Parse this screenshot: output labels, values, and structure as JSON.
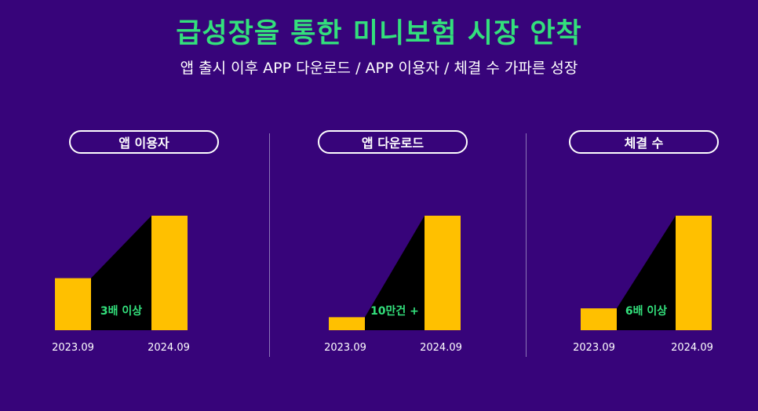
{
  "header": {
    "title": "급성장을 통한 미니보험 시장 안착",
    "subtitle": "앱 출시 이후 APP 다운로드 / APP 이용자 / 체결 수 가파른 성장"
  },
  "colors": {
    "background": "#37047a",
    "title": "#33e07c",
    "bar": "#ffc000",
    "shadow": "#000000",
    "growth_text": "#33e07c"
  },
  "chart_data": [
    {
      "type": "bar",
      "title": "앱 이용자",
      "categories": [
        "2023.09",
        "2024.09"
      ],
      "values": [
        1,
        2.2
      ],
      "annotation": "3배 이상"
    },
    {
      "type": "bar",
      "title": "앱 다운로드",
      "categories": [
        "2023.09",
        "2024.09"
      ],
      "values": [
        0.25,
        2.2
      ],
      "annotation": "10만건 +"
    },
    {
      "type": "bar",
      "title": "체결 수",
      "categories": [
        "2023.09",
        "2024.09"
      ],
      "values": [
        0.42,
        2.2
      ],
      "annotation": "6배 이상"
    }
  ]
}
